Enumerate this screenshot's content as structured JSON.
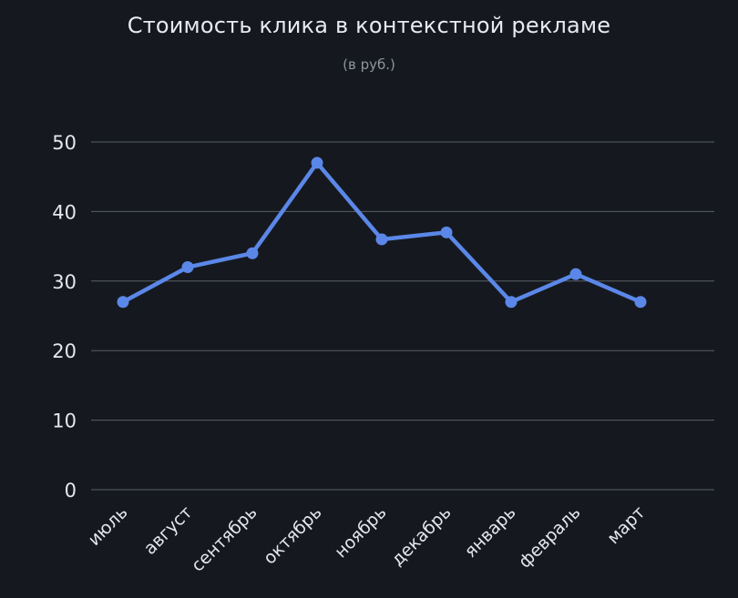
{
  "page": {
    "title": "Стоимость клика в контекстной рекламе",
    "subtitle": "(в руб.)"
  },
  "colors": {
    "background": "#15191f",
    "line": "#5b87e8",
    "point": "#5b87e8",
    "grid": "#595e66",
    "axis_text": "#e4e7eb",
    "title_text": "#e7eaee",
    "subtitle_text": "#8e95a0"
  },
  "chart_data": {
    "type": "line",
    "title": "Стоимость клика в контекстной рекламе",
    "subtitle": "(в руб.)",
    "categories": [
      "июль",
      "август",
      "сентябрь",
      "октябрь",
      "ноябрь",
      "декабрь",
      "январь",
      "февраль",
      "март"
    ],
    "values": [
      27,
      32,
      34,
      47,
      36,
      37,
      27,
      31,
      27
    ],
    "series_name": "Стоимость клика",
    "xlabel": "",
    "ylabel": "",
    "ylim": [
      0,
      50
    ],
    "yticks": [
      0,
      10,
      20,
      30,
      40,
      50
    ],
    "grid": true,
    "legend": "none",
    "x_label_rotation": -45
  }
}
